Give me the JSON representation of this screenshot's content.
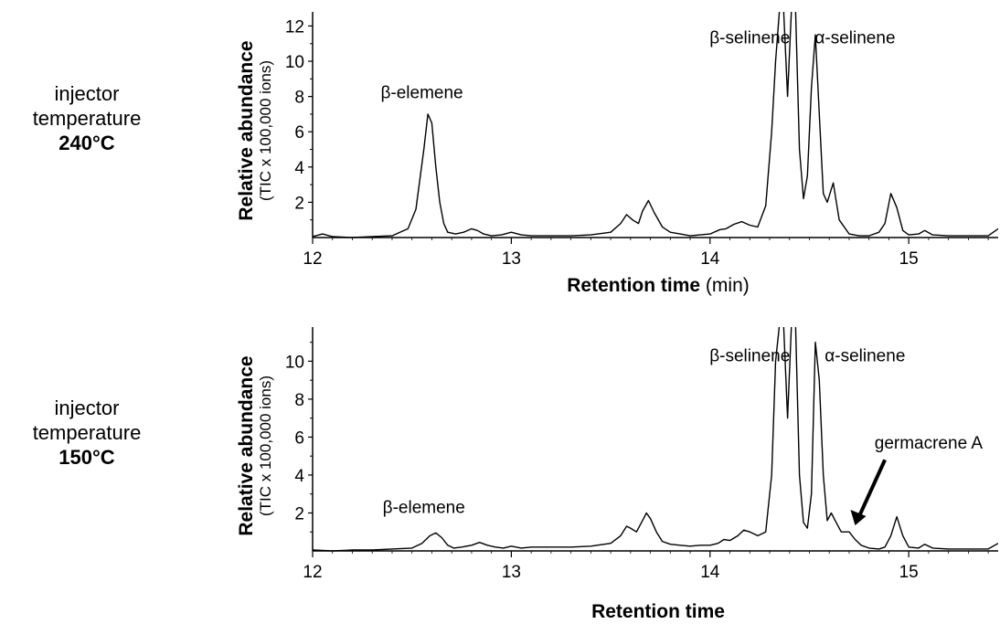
{
  "panels": [
    {
      "side_line1": "injector",
      "side_line2": "temperature",
      "side_temp": "240°C",
      "ylabel_main": "Relative abundance",
      "ylabel_sub": "(TIC x 100,000 ions)",
      "xlabel_main": "Retention time",
      "xlabel_unit": " (min)"
    },
    {
      "side_line1": "injector",
      "side_line2": "temperature",
      "side_temp": "150°C",
      "ylabel_main": "Relative abundance",
      "ylabel_sub": "(TIC x 100,000 ions)",
      "xlabel_main": "Retention time",
      "xlabel_unit": ""
    }
  ],
  "chart_data": [
    {
      "type": "line",
      "title": "",
      "xlabel": "Retention time (min)",
      "ylabel": "Relative abundance (TIC x 100,000 ions)",
      "xlim": [
        12,
        15.45
      ],
      "ylim": [
        0,
        12.8
      ],
      "xticks": [
        12,
        13,
        14,
        15
      ],
      "yticks": [
        2,
        4,
        6,
        8,
        10,
        12
      ],
      "grid": false,
      "series": [
        {
          "name": "",
          "x": [
            12.0,
            12.05,
            12.1,
            12.2,
            12.3,
            12.4,
            12.45,
            12.48,
            12.52,
            12.56,
            12.58,
            12.6,
            12.62,
            12.64,
            12.66,
            12.68,
            12.72,
            12.76,
            12.8,
            12.83,
            12.86,
            12.9,
            12.95,
            13.0,
            13.05,
            13.1,
            13.2,
            13.3,
            13.4,
            13.5,
            13.55,
            13.58,
            13.61,
            13.64,
            13.66,
            13.69,
            13.72,
            13.76,
            13.8,
            13.85,
            13.9,
            13.95,
            14.0,
            14.05,
            14.08,
            14.12,
            14.16,
            14.2,
            14.24,
            14.28,
            14.31,
            14.33,
            14.35,
            14.37,
            14.39,
            14.41,
            14.43,
            14.45,
            14.47,
            14.49,
            14.51,
            14.53,
            14.55,
            14.57,
            14.59,
            14.62,
            14.65,
            14.7,
            14.75,
            14.8,
            14.85,
            14.88,
            14.91,
            14.94,
            14.97,
            15.0,
            15.05,
            15.08,
            15.12,
            15.2,
            15.3,
            15.4,
            15.45
          ],
          "values": [
            0.05,
            0.2,
            0.05,
            0.0,
            0.05,
            0.1,
            0.35,
            0.5,
            1.6,
            5.0,
            7.0,
            6.5,
            4.0,
            2.0,
            0.8,
            0.3,
            0.2,
            0.3,
            0.5,
            0.4,
            0.2,
            0.1,
            0.15,
            0.3,
            0.15,
            0.1,
            0.1,
            0.1,
            0.15,
            0.3,
            0.8,
            1.3,
            1.0,
            0.8,
            1.5,
            2.1,
            1.4,
            0.6,
            0.3,
            0.2,
            0.1,
            0.15,
            0.2,
            0.45,
            0.5,
            0.75,
            0.9,
            0.7,
            0.6,
            1.8,
            6.0,
            10.0,
            13.0,
            13.0,
            8.0,
            13.0,
            13.0,
            5.0,
            2.2,
            3.5,
            8.5,
            11.5,
            7.0,
            2.5,
            2.0,
            3.1,
            1.0,
            0.2,
            0.1,
            0.1,
            0.3,
            0.8,
            2.5,
            1.7,
            0.4,
            0.15,
            0.2,
            0.4,
            0.15,
            0.1,
            0.1,
            0.1,
            0.5
          ]
        }
      ],
      "annotations": [
        "β-elemene",
        "β-selinene",
        "α-selinene"
      ]
    },
    {
      "type": "line",
      "title": "",
      "xlabel": "Retention time",
      "ylabel": "Relative abundance (TIC x 100,000 ions)",
      "xlim": [
        12,
        15.45
      ],
      "ylim": [
        0,
        11.8
      ],
      "xticks": [
        12,
        13,
        14,
        15
      ],
      "yticks": [
        2,
        4,
        6,
        8,
        10
      ],
      "grid": false,
      "series": [
        {
          "name": "",
          "x": [
            12.0,
            12.1,
            12.2,
            12.3,
            12.4,
            12.5,
            12.55,
            12.59,
            12.62,
            12.65,
            12.68,
            12.71,
            12.75,
            12.8,
            12.84,
            12.88,
            12.92,
            12.96,
            13.0,
            13.05,
            13.1,
            13.2,
            13.3,
            13.4,
            13.5,
            13.55,
            13.58,
            13.6,
            13.63,
            13.66,
            13.68,
            13.7,
            13.73,
            13.76,
            13.8,
            13.85,
            13.9,
            13.95,
            14.0,
            14.04,
            14.07,
            14.1,
            14.14,
            14.17,
            14.2,
            14.24,
            14.28,
            14.31,
            14.33,
            14.35,
            14.37,
            14.39,
            14.41,
            14.43,
            14.45,
            14.47,
            14.49,
            14.51,
            14.53,
            14.55,
            14.57,
            14.59,
            14.61,
            14.63,
            14.66,
            14.7,
            14.73,
            14.76,
            14.8,
            14.85,
            14.88,
            14.91,
            14.94,
            14.97,
            15.0,
            15.05,
            15.08,
            15.12,
            15.2,
            15.3,
            15.4,
            15.45
          ],
          "values": [
            0.05,
            0.0,
            0.05,
            0.05,
            0.1,
            0.15,
            0.4,
            0.8,
            0.95,
            0.7,
            0.3,
            0.15,
            0.2,
            0.3,
            0.45,
            0.3,
            0.2,
            0.15,
            0.25,
            0.15,
            0.2,
            0.2,
            0.2,
            0.25,
            0.4,
            0.8,
            1.3,
            1.2,
            1.0,
            1.6,
            2.0,
            1.7,
            1.0,
            0.5,
            0.35,
            0.3,
            0.25,
            0.3,
            0.3,
            0.4,
            0.6,
            0.55,
            0.8,
            1.1,
            1.0,
            0.8,
            1.0,
            4.0,
            10.0,
            12.0,
            12.0,
            7.0,
            12.0,
            12.0,
            4.0,
            1.5,
            1.2,
            3.0,
            11.0,
            9.0,
            4.0,
            1.6,
            2.0,
            1.6,
            1.0,
            1.0,
            0.6,
            0.3,
            0.15,
            0.1,
            0.2,
            0.8,
            1.8,
            0.8,
            0.2,
            0.15,
            0.35,
            0.15,
            0.1,
            0.1,
            0.1,
            0.4
          ]
        }
      ],
      "annotations": [
        "β-elemene",
        "β-selinene",
        "α-selinene",
        "germacrene A"
      ]
    }
  ]
}
